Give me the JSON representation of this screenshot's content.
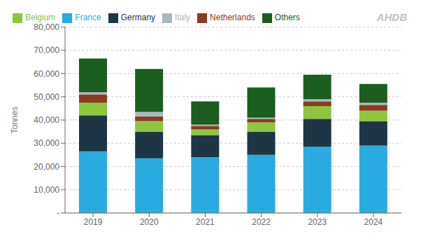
{
  "chart_data": {
    "type": "bar",
    "stacked": true,
    "grid": true,
    "legend": "top left",
    "ylabel": "Tonnes",
    "annotations": [
      "AHDB"
    ],
    "categories": [
      "2019",
      "2020",
      "2021",
      "2022",
      "2023",
      "2024"
    ],
    "series": [
      {
        "name": "France",
        "color": "#29ABE2",
        "values": [
          26500,
          23500,
          24000,
          25000,
          28500,
          29000
        ]
      },
      {
        "name": "Germany",
        "color": "#1D3545",
        "values": [
          15500,
          11500,
          9500,
          10000,
          12000,
          10500
        ]
      },
      {
        "name": "Belgium",
        "color": "#8DC63F",
        "values": [
          5500,
          4500,
          2500,
          4000,
          5500,
          4500
        ]
      },
      {
        "name": "Netherlands",
        "color": "#8B3A1E",
        "values": [
          3500,
          2000,
          1500,
          1500,
          2000,
          2500
        ]
      },
      {
        "name": "Italy",
        "color": "#A9B8C0",
        "values": [
          1000,
          2000,
          500,
          500,
          1000,
          1000
        ]
      },
      {
        "name": "Others",
        "color": "#1B5E20",
        "values": [
          14500,
          18500,
          10000,
          13000,
          10500,
          8000
        ]
      }
    ],
    "ylim": [
      0,
      80000
    ],
    "yticks": [
      {
        "value": 0,
        "label": "-"
      },
      {
        "value": 10000,
        "label": "10,000"
      },
      {
        "value": 20000,
        "label": "20,000"
      },
      {
        "value": 30000,
        "label": "30,000"
      },
      {
        "value": 40000,
        "label": "40,000"
      },
      {
        "value": 50000,
        "label": "50,000"
      },
      {
        "value": 60000,
        "label": "60,000"
      },
      {
        "value": 70000,
        "label": "70,000"
      },
      {
        "value": 80000,
        "label": "80,000"
      }
    ]
  }
}
